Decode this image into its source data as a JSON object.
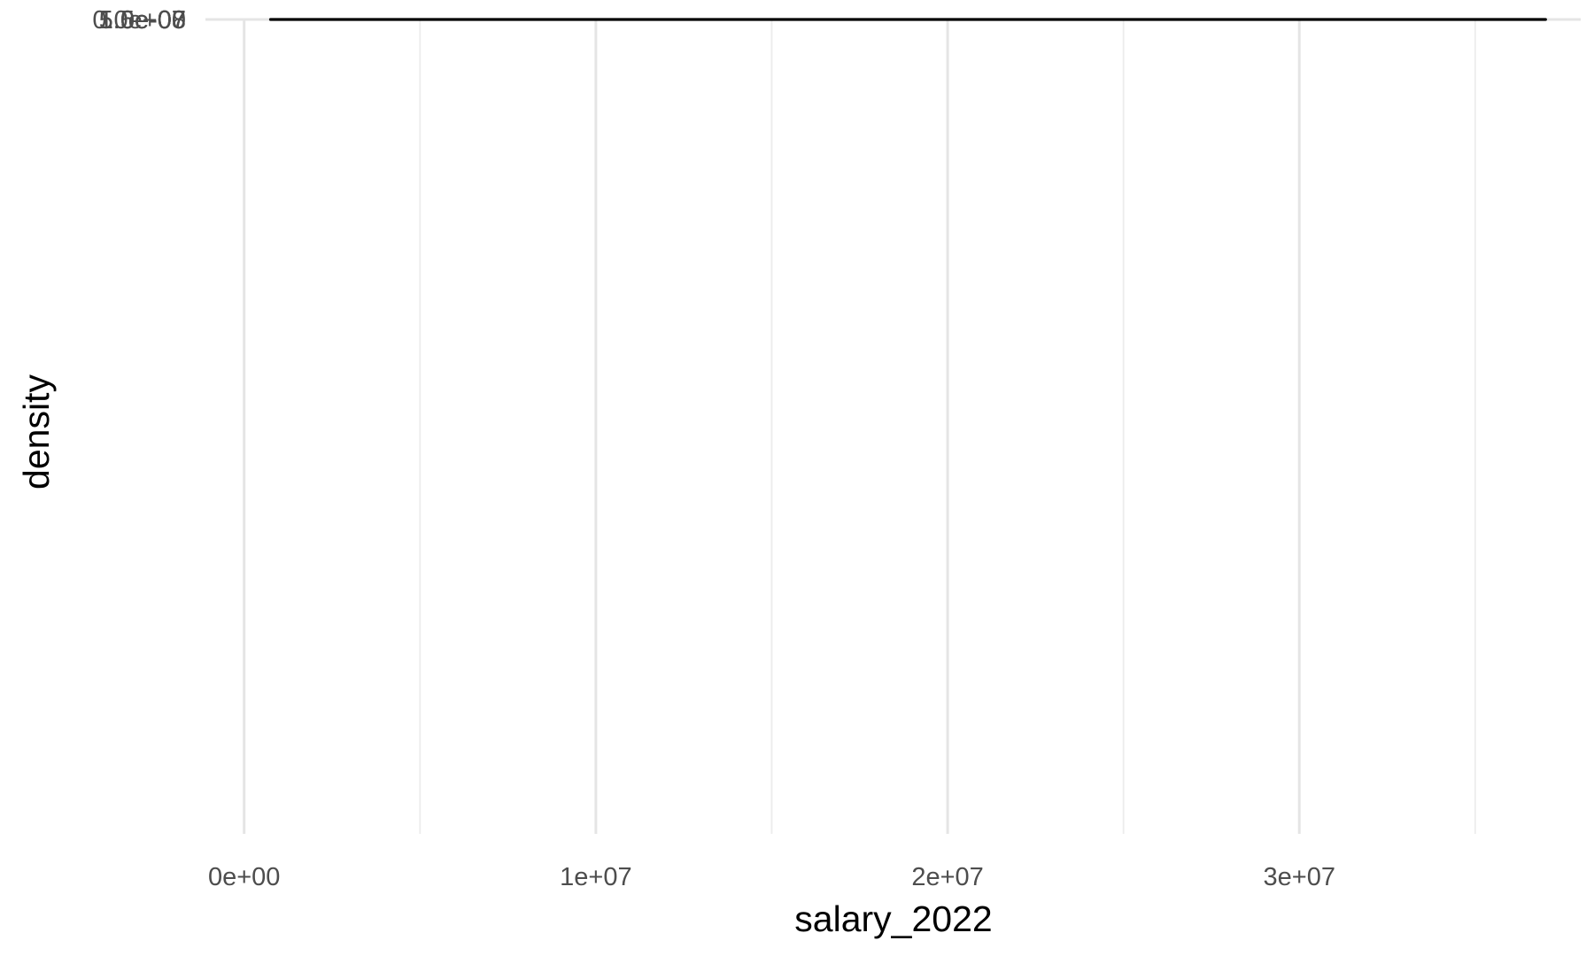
{
  "chart_data": {
    "type": "line",
    "title": "",
    "xlabel": "salary_2022",
    "ylabel": "density",
    "xlim": [
      -1100000,
      38000000
    ],
    "ylim": [
      -7000000000,
      1.83e-07
    ],
    "x_ticks": [
      {
        "value": 0,
        "label": "0e+00"
      },
      {
        "value": 10000000,
        "label": "1e+07"
      },
      {
        "value": 20000000,
        "label": "2e+07"
      },
      {
        "value": 30000000,
        "label": "3e+07"
      }
    ],
    "x_minor": [
      5000000,
      15000000,
      25000000,
      35000000
    ],
    "y_ticks": [
      {
        "value": 0,
        "label": "0.0e+00"
      },
      {
        "value": 5e-08,
        "label": "5.0e-08"
      },
      {
        "value": 1e-07,
        "label": "1.0e-07"
      },
      {
        "value": 1.5e-07,
        "label": "1.5e-07"
      }
    ],
    "y_minor": [
      2.5e-08,
      7.5e-08,
      1.25e-07,
      1.75e-07
    ],
    "grid": true,
    "legend": "none",
    "line_color": "#000000",
    "series": [
      {
        "x": [
          750000,
          1000000,
          1100000,
          1300000,
          1600000,
          2000000,
          2500000,
          3000000,
          3300000,
          3600000,
          4000000,
          4500000,
          5000000,
          5500000,
          6000000,
          6500000,
          7000000,
          7500000,
          8000000,
          8500000,
          9000000,
          10000000,
          11000000,
          12000000,
          13000000,
          14000000,
          15000000,
          15500000,
          16000000,
          17000000,
          18000000,
          19000000,
          20000000,
          21000000,
          22000000,
          23000000,
          24000000,
          25000000,
          26000000,
          27000000,
          28000000,
          29000000,
          30000000,
          31000000,
          32000000,
          33000000,
          34000000,
          35000000,
          36000000,
          37000000
        ],
        "y": [
          1.7e-07,
          1.735e-07,
          1.74e-07,
          1.72e-07,
          1.62e-07,
          1.38e-07,
          1.02e-07,
          7.4e-08,
          6.3e-08,
          5.6e-08,
          5e-08,
          4.5e-08,
          4.05e-08,
          3.7e-08,
          3.45e-08,
          3.25e-08,
          3.05e-08,
          2.85e-08,
          2.6e-08,
          2.35e-08,
          2.1e-08,
          1.75e-08,
          1.45e-08,
          1.2e-08,
          1.05e-08,
          1e-08,
          1.02e-08,
          1.02e-08,
          9.6e-09,
          9e-09,
          9.8e-09,
          1.04e-08,
          9.6e-09,
          7.4e-09,
          5.4e-09,
          4.8e-09,
          4.8e-09,
          4.6e-09,
          3.5e-09,
          2.5e-09,
          2.2e-09,
          2.4e-09,
          2.3e-09,
          2.6e-09,
          3.3e-09,
          3.6e-09,
          3e-09,
          2.2e-09,
          1.9e-09,
          1.6e-09
        ]
      }
    ]
  }
}
